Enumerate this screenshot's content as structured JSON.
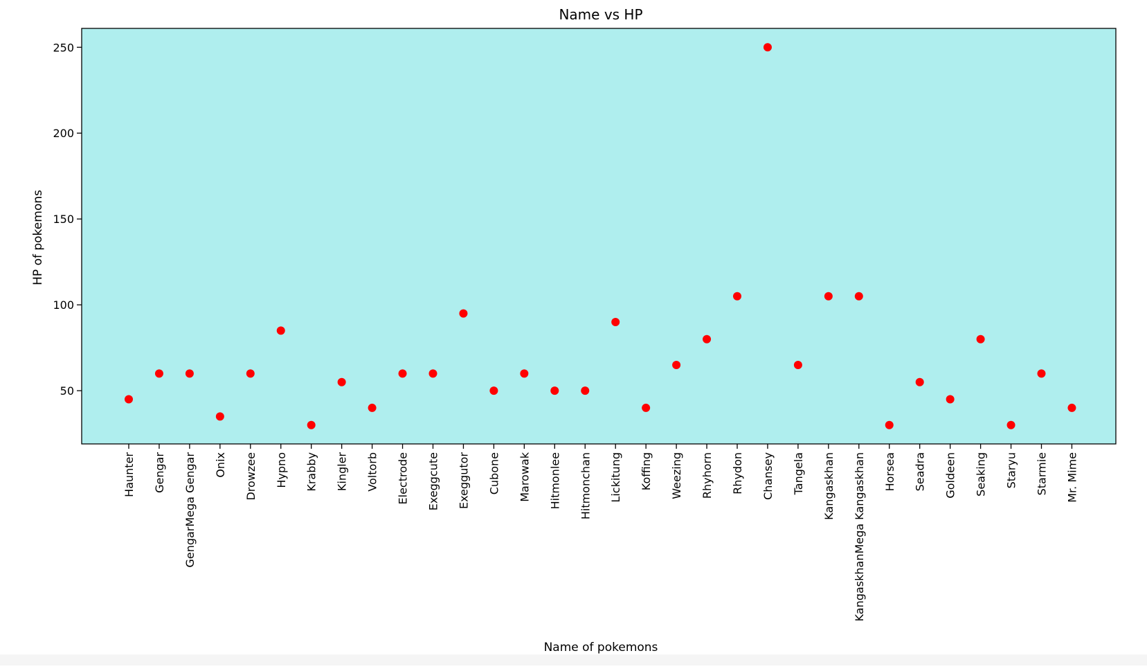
{
  "chart_data": {
    "type": "scatter",
    "title": "Name vs HP",
    "xlabel": "Name of pokemons",
    "ylabel": "HP of pokemons",
    "categories": [
      "Haunter",
      "Gengar",
      "GengarMega Gengar",
      "Onix",
      "Drowzee",
      "Hypno",
      "Krabby",
      "Kingler",
      "Voltorb",
      "Electrode",
      "Exeggcute",
      "Exeggutor",
      "Cubone",
      "Marowak",
      "Hitmonlee",
      "Hitmonchan",
      "Lickitung",
      "Koffing",
      "Weezing",
      "Rhyhorn",
      "Rhydon",
      "Chansey",
      "Tangela",
      "Kangaskhan",
      "KangaskhanMega Kangaskhan",
      "Horsea",
      "Seadra",
      "Goldeen",
      "Seaking",
      "Staryu",
      "Starmie",
      "Mr. Mime"
    ],
    "values": [
      45,
      60,
      60,
      35,
      60,
      85,
      30,
      55,
      40,
      60,
      60,
      95,
      50,
      60,
      50,
      50,
      90,
      40,
      65,
      80,
      105,
      250,
      65,
      105,
      105,
      30,
      55,
      45,
      80,
      30,
      60,
      40
    ],
    "ylim": [
      19,
      261
    ],
    "yticks": [
      50,
      100,
      150,
      200,
      250
    ],
    "grid": false,
    "colors": {
      "plot_background": "#afeeee",
      "marker": "#ff0000"
    }
  }
}
